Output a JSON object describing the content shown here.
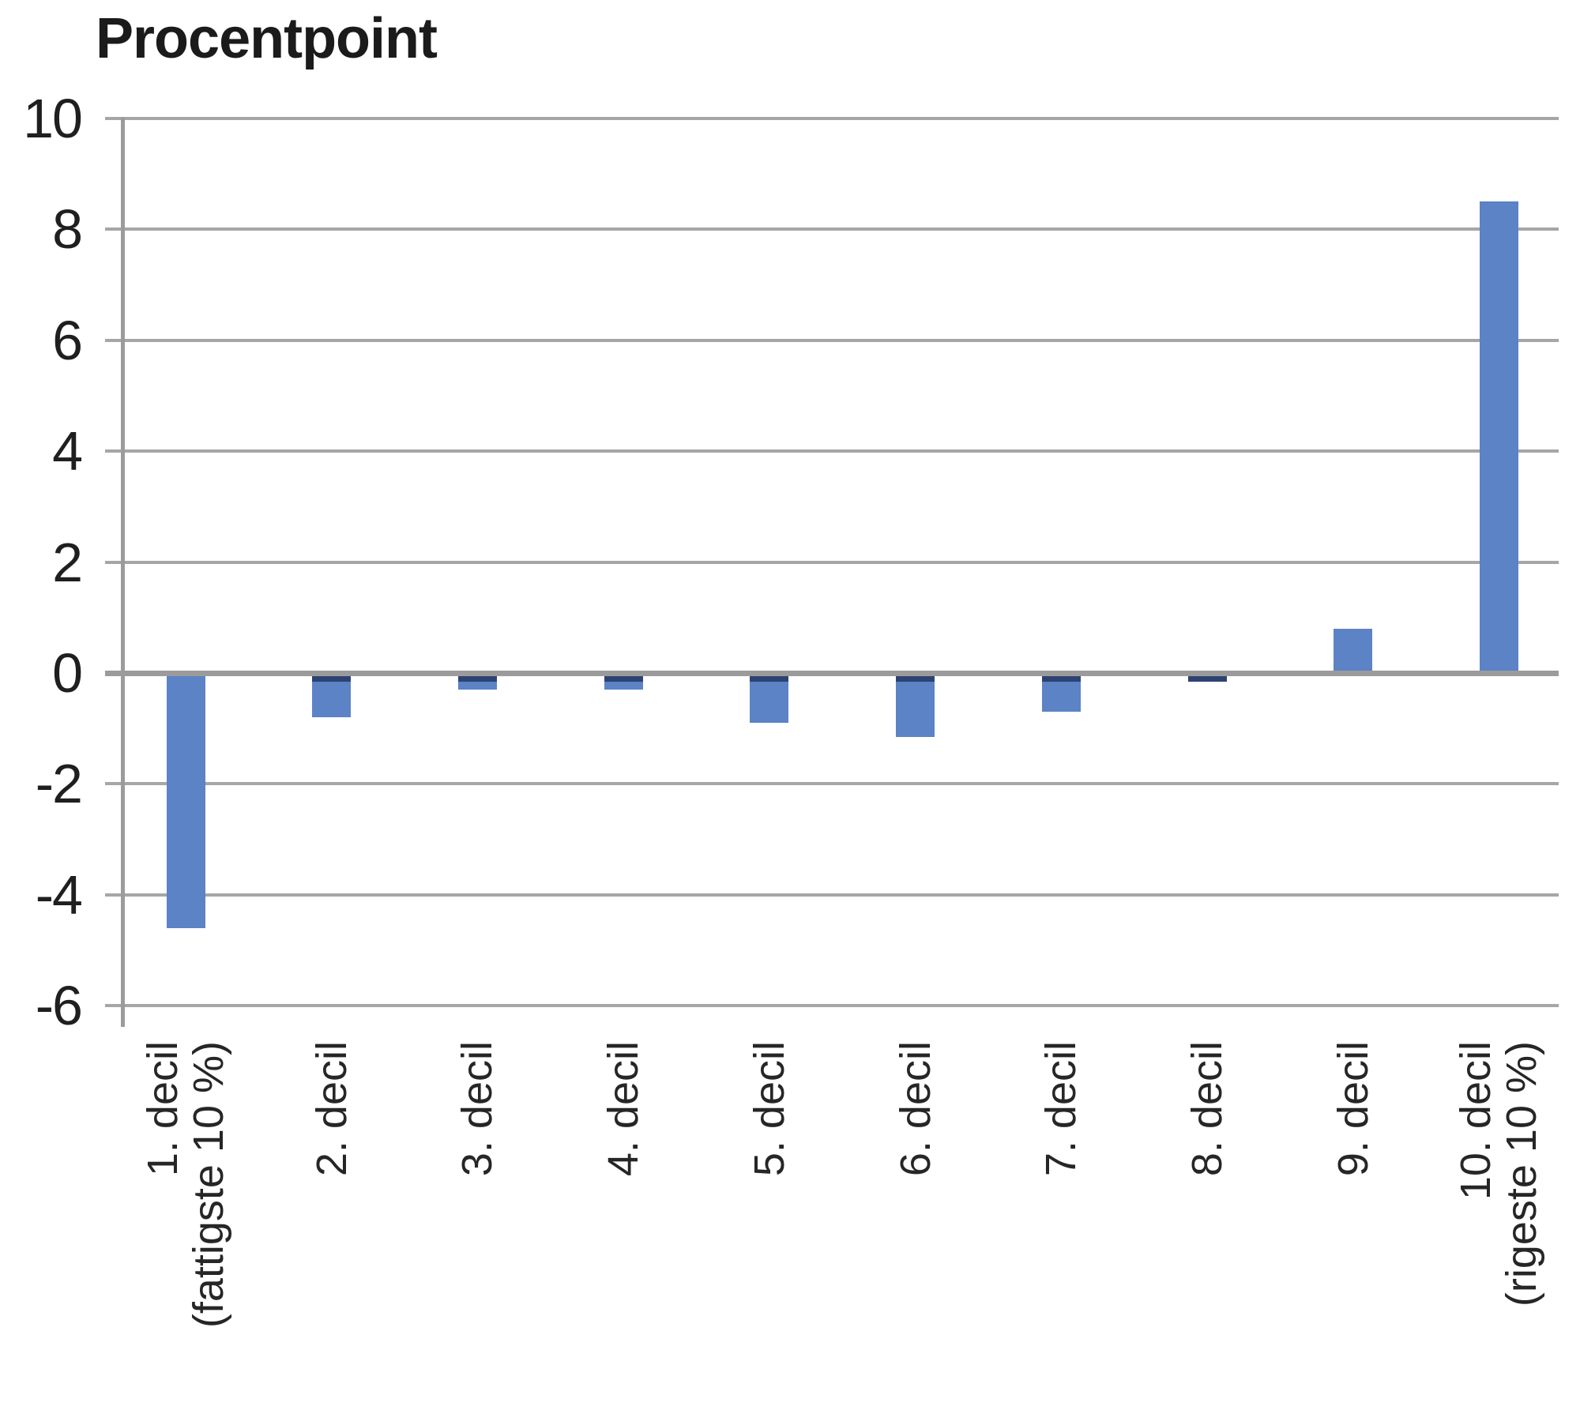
{
  "title": "Procentpoint",
  "chart_data": {
    "type": "bar",
    "title": "Procentpoint",
    "categories": [
      "1. decil\n(fattigste 10 %)",
      "2. decil",
      "3. decil",
      "4. decil",
      "5. decil",
      "6. decil",
      "7. decil",
      "8. decil",
      "9. decil",
      "10. decil\n(rigeste 10 %)"
    ],
    "values": [
      -4.6,
      -0.8,
      -0.3,
      -0.3,
      -0.9,
      -1.15,
      -0.7,
      -0.15,
      0.8,
      8.5
    ],
    "xlabel": "",
    "ylabel": "Procentpoint",
    "ylim": [
      -6,
      10
    ],
    "yticks": [
      "10",
      "8",
      "6",
      "4",
      "2",
      "0",
      "-2",
      "-4",
      "-6"
    ],
    "grid": true,
    "legend": false,
    "colors": {
      "bar": "#5b83c5",
      "bar_dark_edge": "#2d4372",
      "gridline": "#a6a6a6",
      "zero_axis": "#9b9b9b",
      "y_axis": "#9b9b9b",
      "text": "#262626",
      "title_text": "#1b1b1b"
    }
  }
}
